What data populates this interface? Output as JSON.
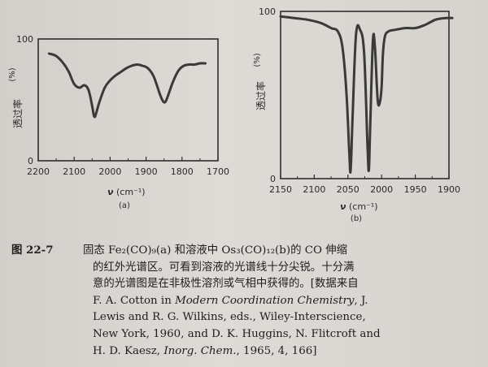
{
  "chart_data": [
    {
      "type": "line",
      "panel_label": "(a)",
      "ylabel": "透过率",
      "ylabel_unit": "(%)",
      "xlabel": "ν",
      "xlabel_unit": "(cm⁻¹)",
      "xlim": [
        2200,
        1700
      ],
      "ylim": [
        0,
        100
      ],
      "x_ticks": [
        2200,
        2100,
        2000,
        1900,
        1800,
        1700
      ],
      "y_ticks": [
        0,
        100
      ],
      "series": [
        {
          "x": [
            2170,
            2150,
            2130,
            2115,
            2100,
            2085,
            2072,
            2060,
            2050,
            2046,
            2043,
            2040,
            2030,
            2015,
            2000,
            1985,
            1970,
            1955,
            1940,
            1925,
            1910,
            1895,
            1880,
            1870,
            1862,
            1855,
            1850,
            1845,
            1837,
            1825,
            1810,
            1795,
            1780,
            1765,
            1750,
            1735
          ],
          "y": [
            88,
            86,
            80,
            73,
            63,
            60,
            62,
            58,
            45,
            38,
            36,
            38,
            48,
            60,
            66,
            70,
            73,
            76,
            78,
            79,
            78,
            76,
            70,
            62,
            55,
            50,
            48,
            49,
            55,
            65,
            74,
            78,
            79,
            79,
            80,
            80
          ]
        }
      ]
    },
    {
      "type": "line",
      "panel_label": "(b)",
      "ylabel": "透过率",
      "ylabel_unit": "(%)",
      "xlabel": "ν",
      "xlabel_unit": "(cm⁻¹)",
      "xlim": [
        2150,
        1900
      ],
      "ylim": [
        0,
        100
      ],
      "x_ticks": [
        2150,
        2100,
        2050,
        2000,
        1950,
        1900
      ],
      "y_ticks": [
        0,
        100
      ],
      "series": [
        {
          "x": [
            2150,
            2130,
            2110,
            2090,
            2075,
            2065,
            2058,
            2052,
            2048,
            2046,
            2043,
            2038,
            2032,
            2026,
            2021,
            2019,
            2017,
            2013,
            2010,
            2006,
            2003,
            2000,
            1998,
            1995,
            1990,
            1980,
            1965,
            1950,
            1935,
            1920,
            1905,
            1895
          ],
          "y": [
            97,
            96,
            95,
            93,
            90,
            88,
            78,
            50,
            15,
            5,
            38,
            86,
            89,
            75,
            20,
            5,
            30,
            82,
            79,
            48,
            45,
            55,
            75,
            85,
            88,
            89,
            90,
            90,
            92,
            95,
            96,
            96
          ]
        }
      ]
    }
  ],
  "caption": {
    "fig_no": "图 22-7",
    "lines": [
      "固态 Fe₂(CO)₉(a) 和溶液中 Os₃(CO)₁₂(b)的 CO 伸缩",
      "的红外光谱区。可看到溶液的光谱线十分尖锐。十分满",
      "意的光谱图是在非极性溶剂或气相中获得的。[数据来自",
      "F. A. Cotton in Modern Coordination Chemistry, J.",
      "Lewis and R. G. Wilkins, eds., Wiley-Interscience,",
      "New York, 1960, and D. K. Huggins, N. Flitcroft and",
      "H. D. Kaesz, Inorg. Chem., 1965, 4, 166]"
    ]
  }
}
